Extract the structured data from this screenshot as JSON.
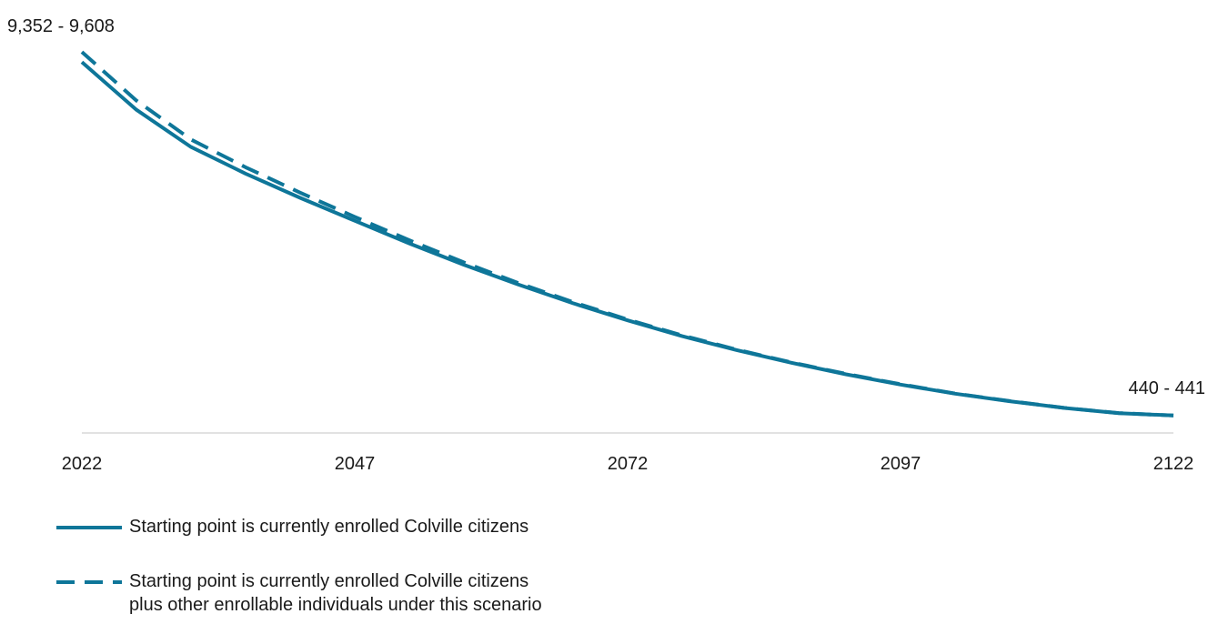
{
  "chart_data": {
    "type": "line",
    "title": "",
    "xlabel": "",
    "ylabel": "",
    "x_ticks": [
      "2022",
      "2047",
      "2072",
      "2097",
      "2122"
    ],
    "xlim": [
      2022,
      2122
    ],
    "ylim": [
      0,
      10000
    ],
    "grid": false,
    "legend_position": "bottom-left",
    "line_color": "#0E7699",
    "series": [
      {
        "name": "Starting point is currently enrolled Colville citizens",
        "style": "solid",
        "x": [
          2022,
          2027,
          2032,
          2037,
          2042,
          2047,
          2052,
          2057,
          2062,
          2067,
          2072,
          2077,
          2082,
          2087,
          2092,
          2097,
          2102,
          2107,
          2112,
          2117,
          2122
        ],
        "y": [
          9352,
          8150,
          7210,
          6540,
          5930,
          5350,
          4780,
          4240,
          3740,
          3270,
          2840,
          2440,
          2090,
          1770,
          1480,
          1220,
          990,
          800,
          630,
          500,
          440
        ]
      },
      {
        "name_line1": "Starting point is currently enrolled Colville citizens",
        "name_line2": "plus other enrollable individuals under this scenario",
        "style": "dashed",
        "x": [
          2022,
          2027,
          2032,
          2037,
          2042,
          2047,
          2052,
          2057,
          2062,
          2067,
          2072,
          2077,
          2082,
          2087,
          2092,
          2097,
          2102,
          2107,
          2112,
          2117,
          2122
        ],
        "y": [
          9608,
          8380,
          7400,
          6700,
          6060,
          5450,
          4860,
          4300,
          3780,
          3300,
          2860,
          2460,
          2100,
          1780,
          1490,
          1230,
          995,
          805,
          633,
          502,
          441
        ]
      }
    ],
    "annotations": {
      "start_range": "9,352 - 9,608",
      "end_range": "440 - 441"
    }
  }
}
